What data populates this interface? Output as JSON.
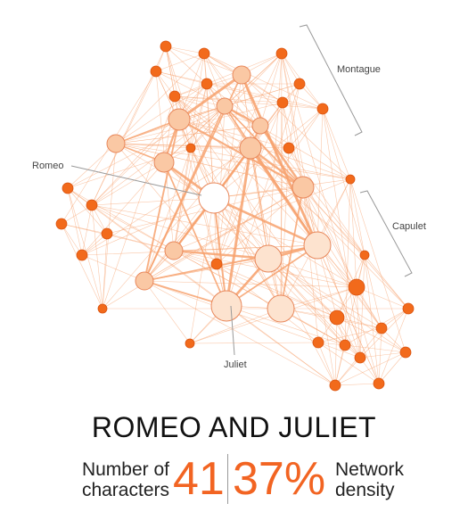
{
  "title": "ROMEO AND JULIET",
  "stats": {
    "characters_label_line1": "Number of",
    "characters_label_line2": "characters",
    "characters_value": "41",
    "density_value": "37%",
    "density_label_line1": "Network",
    "density_label_line2": "density"
  },
  "labels": {
    "montague": "Montague",
    "capulet": "Capulet",
    "romeo": "Romeo",
    "juliet": "Juliet"
  },
  "colors": {
    "accent": "#f26422",
    "edge": "#f7a26e",
    "node_dark": "#f26a1b",
    "node_light": "#fac8a4",
    "node_lighter": "#fde3cf",
    "bracket": "#999999"
  },
  "network": {
    "character_count": 41,
    "density_percent": 37,
    "highlighted": [
      "Romeo",
      "Juliet"
    ],
    "groups": [
      "Montague",
      "Capulet"
    ]
  }
}
